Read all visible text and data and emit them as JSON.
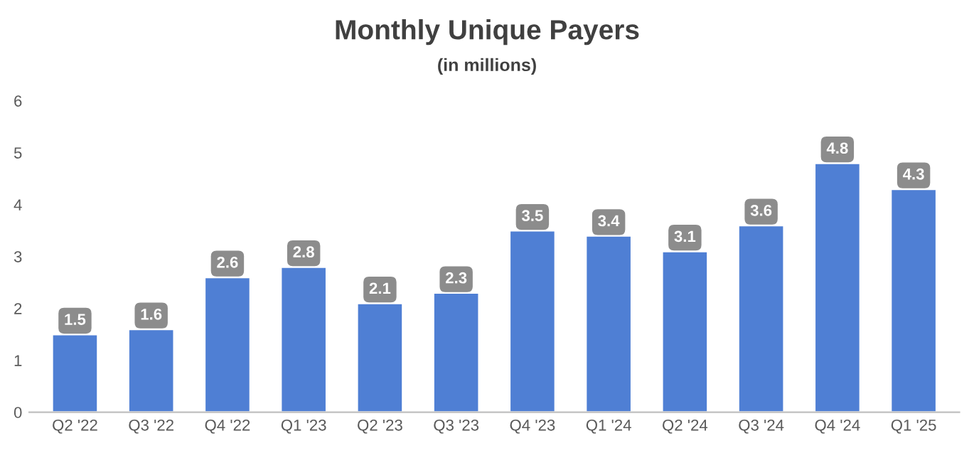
{
  "chart_data": {
    "type": "bar",
    "title": "Monthly Unique Payers",
    "subtitle": "(in millions)",
    "categories": [
      "Q2 '22",
      "Q3 '22",
      "Q4 '22",
      "Q1 '23",
      "Q2 '23",
      "Q3 '23",
      "Q4 '23",
      "Q1 '24",
      "Q2 '24",
      "Q3 '24",
      "Q4 '24",
      "Q1 '25"
    ],
    "values": [
      1.5,
      1.6,
      2.6,
      2.8,
      2.1,
      2.3,
      3.5,
      3.4,
      3.1,
      3.6,
      4.8,
      4.3
    ],
    "color": "#4f7fd4",
    "ylim": [
      0,
      6
    ],
    "yticks": [
      0,
      1,
      2,
      3,
      4,
      5,
      6
    ],
    "data_labels": true,
    "grid": false,
    "legend": false
  }
}
